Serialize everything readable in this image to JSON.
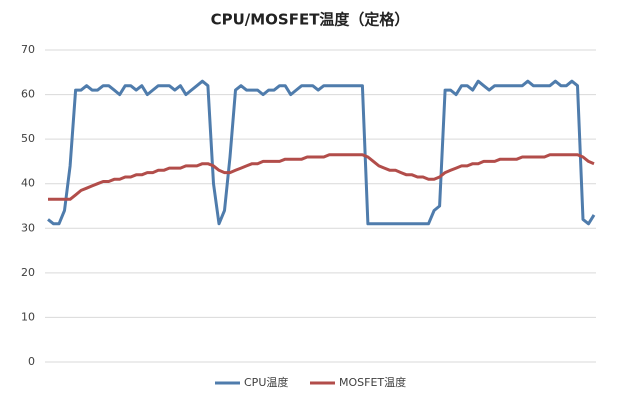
{
  "chart_data": {
    "type": "line",
    "title": "CPU/MOSFET温度（定格）",
    "ylim": [
      0,
      70
    ],
    "yticks": [
      0,
      10,
      20,
      30,
      40,
      50,
      60,
      70
    ],
    "grid": true,
    "legend": "bottom",
    "series": [
      {
        "name": "CPU温度",
        "color": "#4f7cac",
        "values": [
          32,
          31,
          31,
          34,
          44,
          61,
          61,
          62,
          61,
          61,
          62,
          62,
          61,
          60,
          62,
          62,
          61,
          62,
          60,
          61,
          62,
          62,
          62,
          61,
          62,
          60,
          61,
          62,
          63,
          62,
          40,
          31,
          34,
          46,
          61,
          62,
          61,
          61,
          61,
          60,
          61,
          61,
          62,
          62,
          60,
          61,
          62,
          62,
          62,
          61,
          62,
          62,
          62,
          62,
          62,
          62,
          62,
          62,
          31,
          31,
          31,
          31,
          31,
          31,
          31,
          31,
          31,
          31,
          31,
          31,
          34,
          35,
          61,
          61,
          60,
          62,
          62,
          61,
          63,
          62,
          61,
          62,
          62,
          62,
          62,
          62,
          62,
          63,
          62,
          62,
          62,
          62,
          63,
          62,
          62,
          63,
          62,
          32,
          31,
          33
        ]
      },
      {
        "name": "MOSFET温度",
        "color": "#b24d4a",
        "values": [
          36.5,
          36.5,
          36.5,
          36.5,
          36.5,
          37.5,
          38.5,
          39,
          39.5,
          40,
          40.5,
          40.5,
          41,
          41,
          41.5,
          41.5,
          42,
          42,
          42.5,
          42.5,
          43,
          43,
          43.5,
          43.5,
          43.5,
          44,
          44,
          44,
          44.5,
          44.5,
          44,
          43,
          42.5,
          42.5,
          43,
          43.5,
          44,
          44.5,
          44.5,
          45,
          45,
          45,
          45,
          45.5,
          45.5,
          45.5,
          45.5,
          46,
          46,
          46,
          46,
          46.5,
          46.5,
          46.5,
          46.5,
          46.5,
          46.5,
          46.5,
          46,
          45,
          44,
          43.5,
          43,
          43,
          42.5,
          42,
          42,
          41.5,
          41.5,
          41,
          41,
          41.5,
          42.5,
          43,
          43.5,
          44,
          44,
          44.5,
          44.5,
          45,
          45,
          45,
          45.5,
          45.5,
          45.5,
          45.5,
          46,
          46,
          46,
          46,
          46,
          46.5,
          46.5,
          46.5,
          46.5,
          46.5,
          46.5,
          46,
          45,
          44.5
        ]
      }
    ]
  }
}
